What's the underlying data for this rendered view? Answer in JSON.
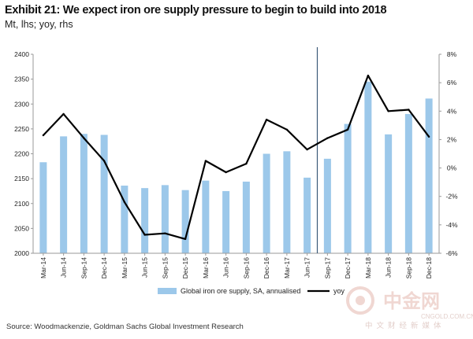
{
  "header": {
    "title": "Exhibit 21: We expect iron ore supply pressure to begin to build into 2018",
    "subtitle": "Mt, lhs; yoy, rhs"
  },
  "footer": {
    "source": "Source: Woodmackenzie, Goldman Sachs Global Investment Research"
  },
  "watermark": {
    "main": "中金网",
    "url": "CNGOLD.COM.CN",
    "sub": "中文财经新媒体"
  },
  "colors": {
    "bar": "#9cc8ea",
    "line": "#000000",
    "axis": "#9a9a9a",
    "divider": "#3c5a78"
  },
  "chart_data": {
    "type": "bar",
    "categories": [
      "Mar-14",
      "Jun-14",
      "Sep-14",
      "Dec-14",
      "Mar-15",
      "Jun-15",
      "Sep-15",
      "Dec-15",
      "Mar-16",
      "Jun-16",
      "Sep-16",
      "Dec-16",
      "Mar-17",
      "Jun-17",
      "Sep-17",
      "Dec-17",
      "Mar-18",
      "Jun-18",
      "Sep-18",
      "Dec-18"
    ],
    "series": [
      {
        "name": "Global iron ore supply, SA, annualised",
        "type": "bar",
        "axis": "left",
        "values": [
          2183,
          2235,
          2240,
          2238,
          2136,
          2131,
          2137,
          2127,
          2146,
          2125,
          2144,
          2200,
          2205,
          2152,
          2190,
          2260,
          2345,
          2239,
          2280,
          2311
        ]
      },
      {
        "name": "yoy",
        "type": "line",
        "axis": "right",
        "values": [
          2.3,
          3.8,
          2.1,
          0.5,
          -2.4,
          -4.7,
          -4.6,
          -5.0,
          0.5,
          -0.3,
          0.3,
          3.4,
          2.7,
          1.3,
          2.1,
          2.7,
          6.5,
          4.0,
          4.1,
          2.2
        ]
      }
    ],
    "y_left": {
      "ylim": [
        2000,
        2400
      ],
      "ticks": [
        2000,
        2050,
        2100,
        2150,
        2200,
        2250,
        2300,
        2350,
        2400
      ]
    },
    "y_right": {
      "ylim": [
        -6,
        8
      ],
      "ticks": [
        "-6%",
        "-4%",
        "-2%",
        "0%",
        "2%",
        "4%",
        "6%",
        "8%"
      ]
    },
    "forecast_divider_after": "Jun-17",
    "legend_position": "bottom"
  }
}
